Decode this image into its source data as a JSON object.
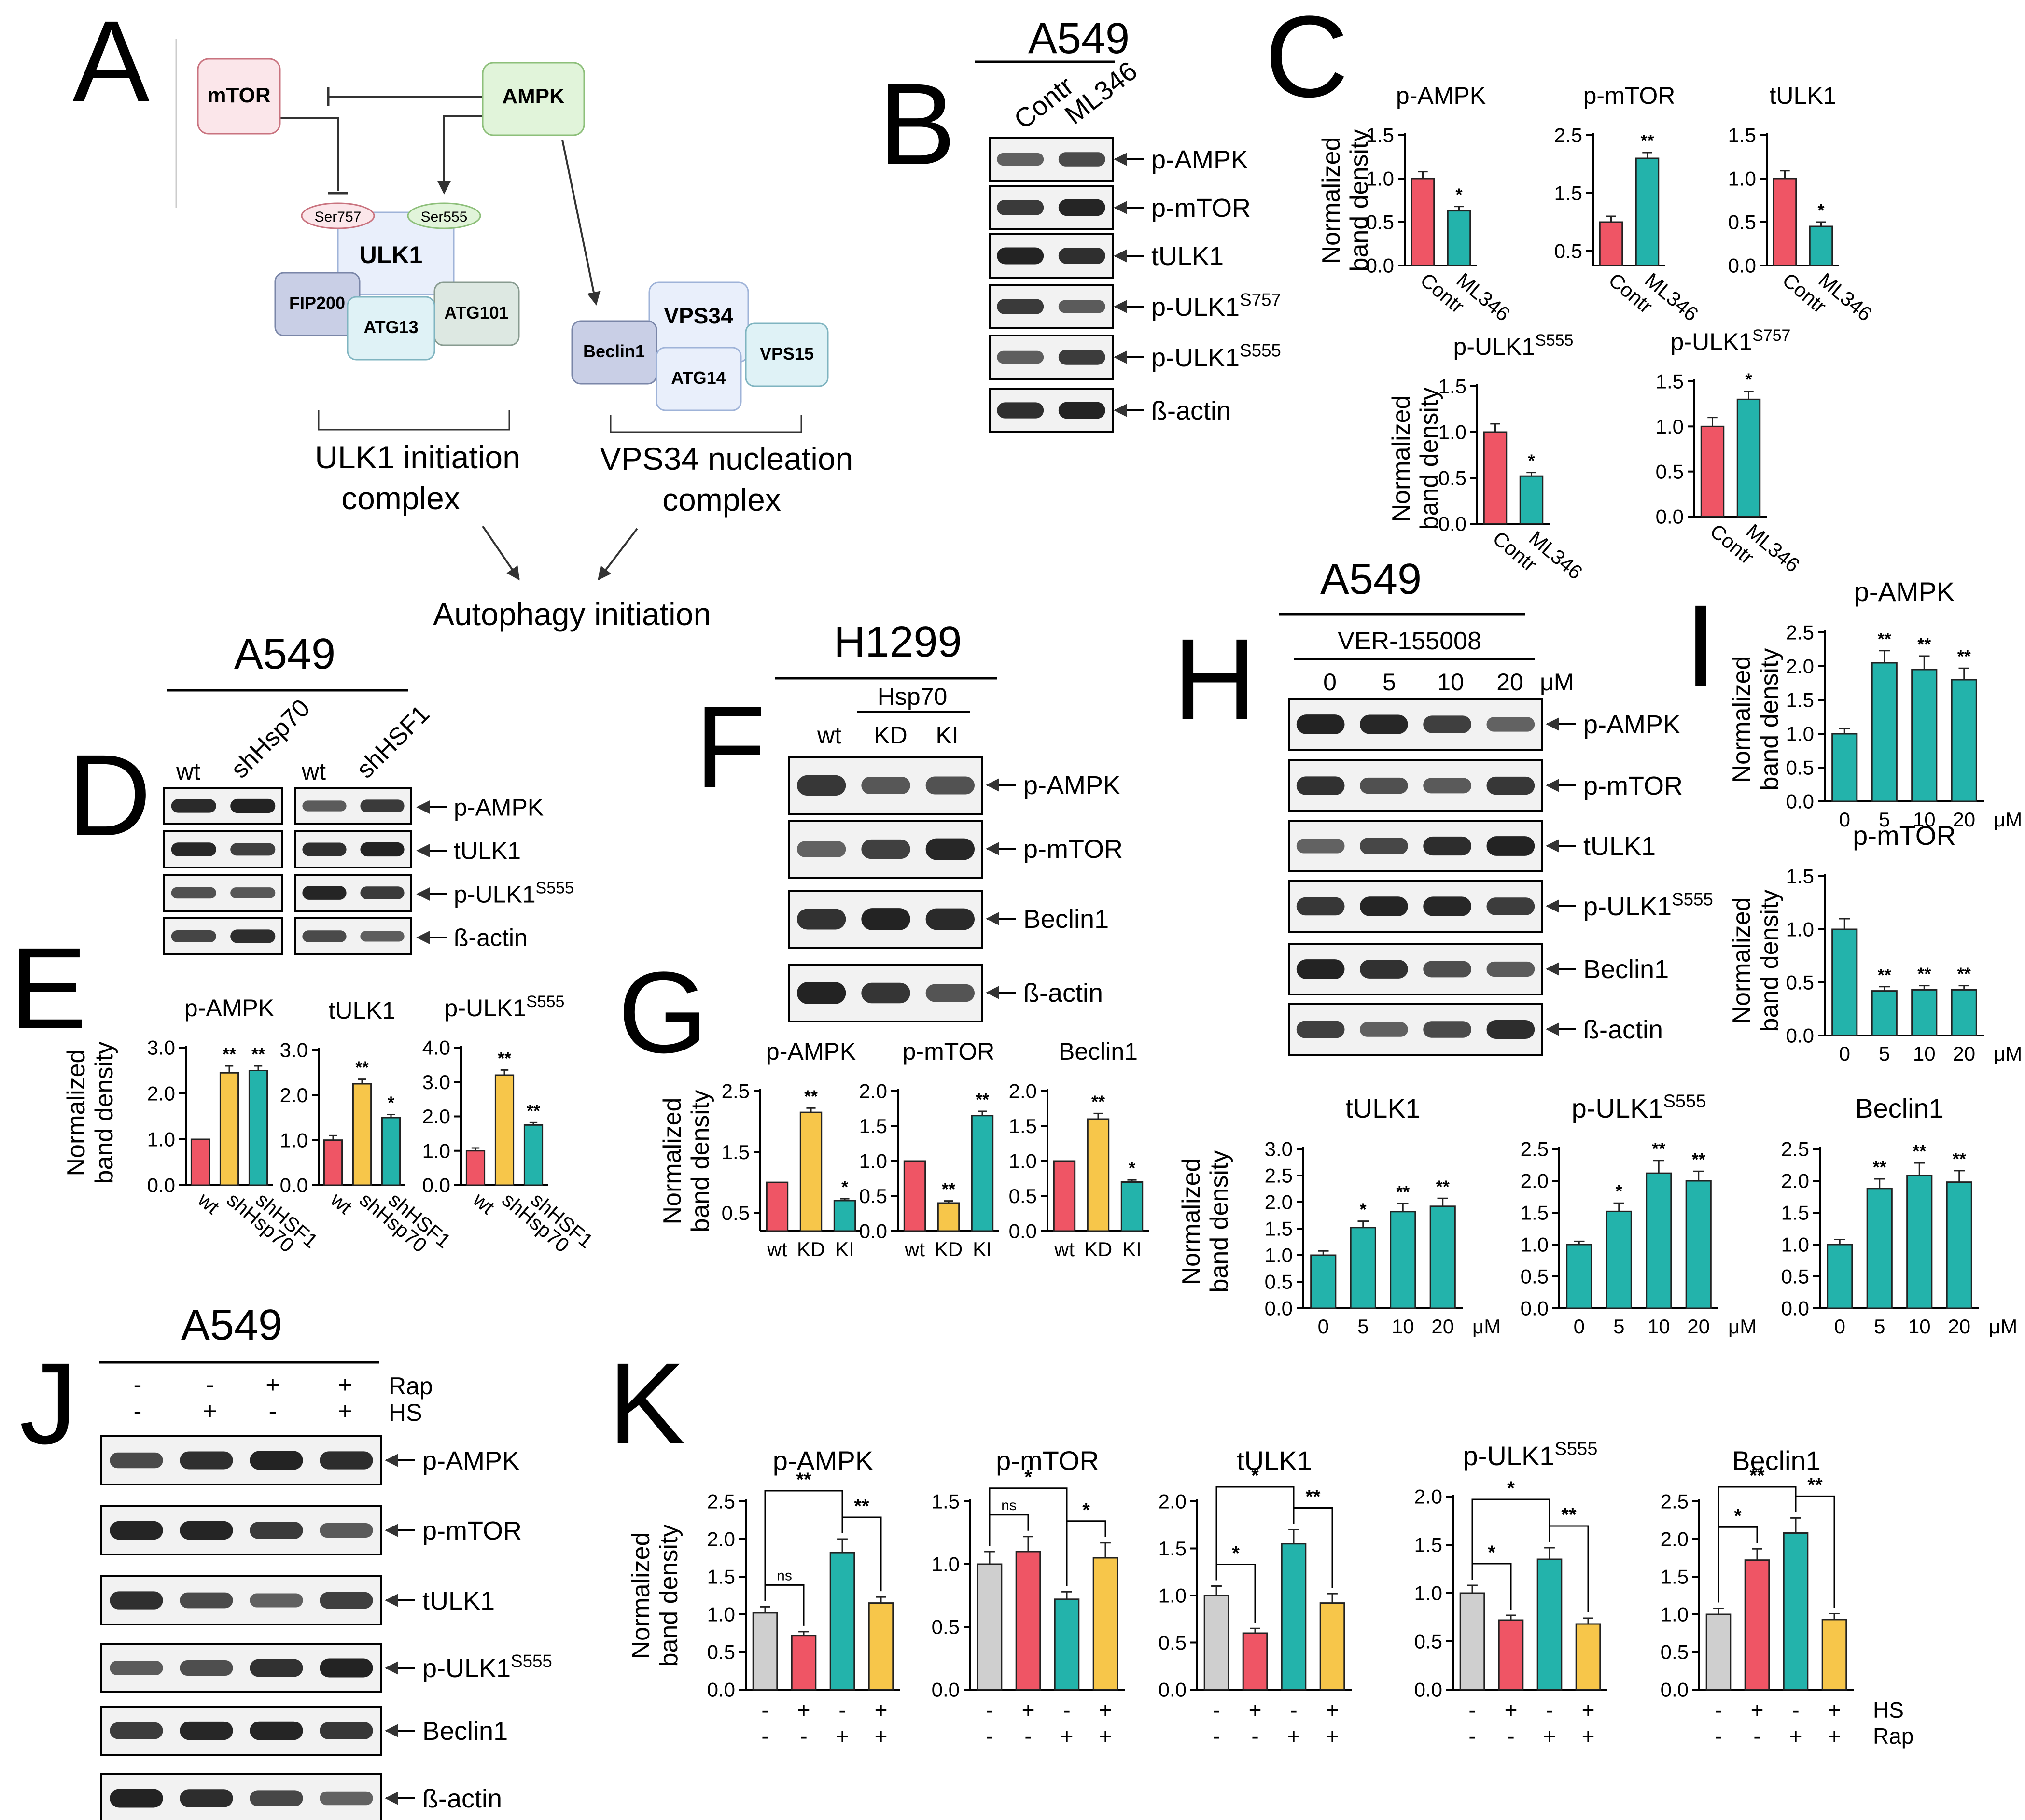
{
  "colors": {
    "grey": "#cfcfcf",
    "red": "#ef5565",
    "teal": "#23b3ab",
    "yellow": "#f7c64a",
    "mtor_fill": "#fbe6ea",
    "mtor_stroke": "#c9737f",
    "ampk_fill": "#e1f4da",
    "ampk_stroke": "#8dbf7a",
    "ulk_fill": "#e9effb",
    "ulk_stroke": "#9fb3d8",
    "fip_fill": "#c9cfe6",
    "atg13_fill": "#dff2f6",
    "atg101_fill": "#dde8e2",
    "blot_fill": "#f2f2f2"
  },
  "panel_letters": [
    "A",
    "B",
    "C",
    "D",
    "E",
    "F",
    "G",
    "H",
    "I",
    "J",
    "K"
  ],
  "diagram": {
    "nodes": {
      "mtor": "mTOR",
      "ampk": "AMPK",
      "ser757": "Ser757",
      "ser555": "Ser555",
      "ulk1": "ULK1",
      "fip200": "FIP200",
      "atg13": "ATG13",
      "atg101": "ATG101",
      "beclin1": "Beclin1",
      "vps34": "VPS34",
      "atg14": "ATG14",
      "vps15": "VPS15"
    },
    "ulk1_complex": [
      "ULK1 initiation",
      "complex"
    ],
    "vps34_complex": [
      "VPS34 nucleation",
      "complex"
    ],
    "outcome": "Autophagy initiation"
  },
  "shared_text": {
    "ylabel": [
      "Normalized",
      "band density"
    ],
    "um": "μM",
    "sig1": "*",
    "sig2": "**",
    "ns": "ns"
  },
  "blots": {
    "B": {
      "cell": "A549",
      "lanes": [
        "Contr",
        "ML346"
      ],
      "rows": [
        {
          "label": "p-AMPK"
        },
        {
          "label": "p-mTOR"
        },
        {
          "label": "tULK1"
        },
        {
          "label": "p-ULK1",
          "sup": "S757"
        },
        {
          "label": "p-ULK1",
          "sup": "S555"
        },
        {
          "label": "ß-actin"
        }
      ]
    },
    "D": {
      "cell": "A549",
      "lanes": [
        "wt",
        "shHsp70",
        "wt",
        "shHSF1"
      ],
      "rows": [
        {
          "label": "p-AMPK"
        },
        {
          "label": "tULK1"
        },
        {
          "label": "p-ULK1",
          "sup": "S555"
        },
        {
          "label": "ß-actin"
        }
      ]
    },
    "F": {
      "cell": "H1299",
      "group": "Hsp70",
      "lanes": [
        "wt",
        "KD",
        "KI"
      ],
      "rows": [
        {
          "label": "p-AMPK"
        },
        {
          "label": "p-mTOR"
        },
        {
          "label": "Beclin1"
        },
        {
          "label": "ß-actin"
        }
      ]
    },
    "H": {
      "cell": "A549",
      "treatment": "VER-155008",
      "lanes": [
        "0",
        "5",
        "10",
        "20"
      ],
      "rows": [
        {
          "label": "p-AMPK"
        },
        {
          "label": "p-mTOR"
        },
        {
          "label": "tULK1"
        },
        {
          "label": "p-ULK1",
          "sup": "S555"
        },
        {
          "label": "Beclin1"
        },
        {
          "label": "ß-actin"
        }
      ]
    },
    "J": {
      "cell": "A549",
      "rap": [
        "-",
        "-",
        "+",
        "+"
      ],
      "hs": [
        "-",
        "+",
        "-",
        "+"
      ],
      "rap_label": "Rap",
      "hs_label": "HS",
      "rows": [
        {
          "label": "p-AMPK"
        },
        {
          "label": "p-mTOR"
        },
        {
          "label": "tULK1"
        },
        {
          "label": "p-ULK1",
          "sup": "S555"
        },
        {
          "label": "Beclin1"
        },
        {
          "label": "ß-actin"
        }
      ]
    }
  },
  "chart_data": [
    {
      "id": "C-pAMPK",
      "type": "bar",
      "title": "p-AMPK",
      "categories": [
        "Contr",
        "ML346"
      ],
      "values": [
        1.0,
        0.63
      ],
      "errors": [
        0.08,
        0.05
      ],
      "colors": [
        "red",
        "teal"
      ],
      "ylim": [
        0,
        1.5
      ],
      "yticks": [
        "0.0",
        "0.5",
        "1.0",
        "1.5"
      ],
      "sig": [
        "",
        "*"
      ]
    },
    {
      "id": "C-pmTOR",
      "type": "bar",
      "title": "p-mTOR",
      "categories": [
        "Contr",
        "ML346"
      ],
      "values": [
        1.0,
        2.1
      ],
      "errors": [
        0.1,
        0.1
      ],
      "colors": [
        "red",
        "teal"
      ],
      "ylim": [
        0.25,
        2.5
      ],
      "yticks": [
        "0.5",
        "1.5",
        "2.5"
      ],
      "sig": [
        "",
        "**"
      ]
    },
    {
      "id": "C-tULK1",
      "type": "bar",
      "title": "tULK1",
      "categories": [
        "Contr",
        "ML346"
      ],
      "values": [
        1.0,
        0.45
      ],
      "errors": [
        0.09,
        0.05
      ],
      "colors": [
        "red",
        "teal"
      ],
      "ylim": [
        0,
        1.5
      ],
      "yticks": [
        "0.0",
        "0.5",
        "1.0",
        "1.5"
      ],
      "sig": [
        "",
        "*"
      ]
    },
    {
      "id": "C-pULK1S555",
      "type": "bar",
      "title": "p-ULK1",
      "title_sup": "S555",
      "categories": [
        "Contr",
        "ML346"
      ],
      "values": [
        1.0,
        0.52
      ],
      "errors": [
        0.09,
        0.04
      ],
      "colors": [
        "red",
        "teal"
      ],
      "ylim": [
        0,
        1.5
      ],
      "yticks": [
        "0.0",
        "0.5",
        "1.0",
        "1.5"
      ],
      "sig": [
        "",
        "*"
      ]
    },
    {
      "id": "C-pULK1S757",
      "type": "bar",
      "title": "p-ULK1",
      "title_sup": "S757",
      "categories": [
        "Contr",
        "ML346"
      ],
      "values": [
        1.0,
        1.3
      ],
      "errors": [
        0.1,
        0.09
      ],
      "colors": [
        "red",
        "teal"
      ],
      "ylim": [
        0,
        1.5
      ],
      "yticks": [
        "0.0",
        "0.5",
        "1.0",
        "1.5"
      ],
      "sig": [
        "",
        "*"
      ]
    },
    {
      "id": "E-pAMPK",
      "type": "bar",
      "title": "p-AMPK",
      "categories": [
        "wt",
        "shHsp70",
        "shHSF1"
      ],
      "values": [
        1.0,
        2.45,
        2.5
      ],
      "errors": [
        0.0,
        0.15,
        0.1
      ],
      "colors": [
        "red",
        "yellow",
        "teal"
      ],
      "ylim": [
        0,
        3.0
      ],
      "yticks": [
        "0.0",
        "1.0",
        "2.0",
        "3.0"
      ],
      "sig": [
        "",
        "**",
        "**"
      ]
    },
    {
      "id": "E-tULK1",
      "type": "bar",
      "title": "tULK1",
      "categories": [
        "wt",
        "shHsp70",
        "shHSF1"
      ],
      "values": [
        1.0,
        2.25,
        1.5
      ],
      "errors": [
        0.1,
        0.1,
        0.07
      ],
      "colors": [
        "red",
        "yellow",
        "teal"
      ],
      "ylim": [
        0,
        3.0
      ],
      "yticks": [
        "0.0",
        "1.0",
        "2.0",
        "3.0"
      ],
      "sig": [
        "",
        "**",
        "*"
      ]
    },
    {
      "id": "E-pULK1S555",
      "type": "bar",
      "title": "p-ULK1",
      "title_sup": "S555",
      "categories": [
        "wt",
        "shHsp70",
        "shHSF1"
      ],
      "values": [
        1.0,
        3.2,
        1.75
      ],
      "errors": [
        0.08,
        0.15,
        0.07
      ],
      "colors": [
        "red",
        "yellow",
        "teal"
      ],
      "ylim": [
        0,
        4.0
      ],
      "yticks": [
        "0.0",
        "1.0",
        "2.0",
        "3.0",
        "4.0"
      ],
      "sig": [
        "",
        "**",
        "**"
      ]
    },
    {
      "id": "G-pAMPK",
      "type": "bar",
      "title": "p-AMPK",
      "categories": [
        "wt",
        "KD",
        "KI"
      ],
      "values": [
        1.0,
        2.15,
        0.7
      ],
      "errors": [
        0.0,
        0.07,
        0.03
      ],
      "colors": [
        "red",
        "yellow",
        "teal"
      ],
      "ylim": [
        0.2,
        2.5
      ],
      "yticks": [
        "0.5",
        "1.5",
        "2.5"
      ],
      "sig": [
        "",
        "**",
        "*"
      ]
    },
    {
      "id": "G-pmTOR",
      "type": "bar",
      "title": "p-mTOR",
      "categories": [
        "wt",
        "KD",
        "KI"
      ],
      "values": [
        1.0,
        0.4,
        1.65
      ],
      "errors": [
        0.0,
        0.03,
        0.06
      ],
      "colors": [
        "red",
        "yellow",
        "teal"
      ],
      "ylim": [
        0,
        2.0
      ],
      "yticks": [
        "0.0",
        "0.5",
        "1.0",
        "1.5",
        "2.0"
      ],
      "sig": [
        "",
        "**",
        "**"
      ]
    },
    {
      "id": "G-Beclin1",
      "type": "bar",
      "title": "Beclin1",
      "categories": [
        "wt",
        "KD",
        "KI"
      ],
      "values": [
        1.0,
        1.6,
        0.7
      ],
      "errors": [
        0.0,
        0.08,
        0.03
      ],
      "colors": [
        "red",
        "yellow",
        "teal"
      ],
      "ylim": [
        0,
        2.0
      ],
      "yticks": [
        "0.0",
        "0.5",
        "1.0",
        "1.5",
        "2.0"
      ],
      "sig": [
        "",
        "**",
        "*"
      ]
    },
    {
      "id": "H-tULK1",
      "type": "bar",
      "title": "tULK1",
      "categories": [
        "0",
        "5",
        "10",
        "20"
      ],
      "values": [
        1.0,
        1.52,
        1.82,
        1.92
      ],
      "errors": [
        0.08,
        0.12,
        0.15,
        0.15
      ],
      "colors": [
        "teal",
        "teal",
        "teal",
        "teal"
      ],
      "ylim": [
        0,
        3.0
      ],
      "yticks": [
        "0.0",
        "0.5",
        "1.0",
        "1.5",
        "2.0",
        "2.5",
        "3.0"
      ],
      "sig": [
        "",
        "*",
        "**",
        "**"
      ],
      "unit": true
    },
    {
      "id": "H-pULK1S555",
      "type": "bar",
      "title": "p-ULK1",
      "title_sup": "S555",
      "categories": [
        "0",
        "5",
        "10",
        "20"
      ],
      "values": [
        1.0,
        1.52,
        2.12,
        2.0
      ],
      "errors": [
        0.05,
        0.13,
        0.2,
        0.15
      ],
      "colors": [
        "teal",
        "teal",
        "teal",
        "teal"
      ],
      "ylim": [
        0,
        2.5
      ],
      "yticks": [
        "0.0",
        "0.5",
        "1.0",
        "1.5",
        "2.0",
        "2.5"
      ],
      "sig": [
        "",
        "*",
        "**",
        "**"
      ],
      "unit": true
    },
    {
      "id": "H-Beclin1",
      "type": "bar",
      "title": "Beclin1",
      "categories": [
        "0",
        "5",
        "10",
        "20"
      ],
      "values": [
        1.0,
        1.88,
        2.08,
        1.98
      ],
      "errors": [
        0.08,
        0.15,
        0.2,
        0.18
      ],
      "colors": [
        "teal",
        "teal",
        "teal",
        "teal"
      ],
      "ylim": [
        0,
        2.5
      ],
      "yticks": [
        "0.0",
        "0.5",
        "1.0",
        "1.5",
        "2.0",
        "2.5"
      ],
      "sig": [
        "",
        "**",
        "**",
        "**"
      ],
      "unit": true
    },
    {
      "id": "I-pAMPK",
      "type": "bar",
      "title": "p-AMPK",
      "categories": [
        "0",
        "5",
        "10",
        "20"
      ],
      "values": [
        1.0,
        2.05,
        1.95,
        1.8
      ],
      "errors": [
        0.08,
        0.18,
        0.2,
        0.17
      ],
      "colors": [
        "teal",
        "teal",
        "teal",
        "teal"
      ],
      "ylim": [
        0,
        2.5
      ],
      "yticks": [
        "0.0",
        "0.5",
        "1.0",
        "1.5",
        "2.0",
        "2.5"
      ],
      "sig": [
        "",
        "**",
        "**",
        "**"
      ],
      "unit": true
    },
    {
      "id": "I-pmTOR",
      "type": "bar",
      "title": "p-mTOR",
      "categories": [
        "0",
        "5",
        "10",
        "20"
      ],
      "values": [
        1.0,
        0.42,
        0.43,
        0.43
      ],
      "errors": [
        0.1,
        0.04,
        0.04,
        0.04
      ],
      "colors": [
        "teal",
        "teal",
        "teal",
        "teal"
      ],
      "ylim": [
        0,
        1.5
      ],
      "yticks": [
        "0.0",
        "0.5",
        "1.0",
        "1.5"
      ],
      "sig": [
        "",
        "**",
        "**",
        "**"
      ],
      "unit": true
    },
    {
      "id": "K-pAMPK",
      "type": "bar",
      "title": "p-AMPK",
      "hs": [
        "-",
        "+",
        "-",
        "+"
      ],
      "rap": [
        "-",
        "-",
        "+",
        "+"
      ],
      "values": [
        1.02,
        0.72,
        1.82,
        1.15
      ],
      "errors": [
        0.08,
        0.05,
        0.18,
        0.08
      ],
      "colors": [
        "grey",
        "red",
        "teal",
        "yellow"
      ],
      "ylim": [
        0,
        2.5
      ],
      "yticks": [
        "0.0",
        "0.5",
        "1.0",
        "1.5",
        "2.0",
        "2.5"
      ],
      "brackets": [
        {
          "a": 0,
          "b": 1,
          "label": "ns",
          "level": 0
        },
        {
          "a": 0,
          "b": 2,
          "label": "**",
          "level": 1
        },
        {
          "a": 2,
          "b": 3,
          "label": "**",
          "level": 0
        }
      ]
    },
    {
      "id": "K-pmTOR",
      "type": "bar",
      "title": "p-mTOR",
      "hs": [
        "-",
        "+",
        "-",
        "+"
      ],
      "rap": [
        "-",
        "-",
        "+",
        "+"
      ],
      "values": [
        1.0,
        1.1,
        0.72,
        1.05
      ],
      "errors": [
        0.1,
        0.12,
        0.06,
        0.12
      ],
      "colors": [
        "grey",
        "red",
        "teal",
        "yellow"
      ],
      "ylim": [
        0,
        1.5
      ],
      "yticks": [
        "0.0",
        "0.5",
        "1.0",
        "1.5"
      ],
      "brackets": [
        {
          "a": 0,
          "b": 1,
          "label": "ns",
          "level": 0
        },
        {
          "a": 0,
          "b": 2,
          "label": "*",
          "level": 1
        },
        {
          "a": 2,
          "b": 3,
          "label": "*",
          "level": 0
        }
      ]
    },
    {
      "id": "K-tULK1",
      "type": "bar",
      "title": "tULK1",
      "hs": [
        "-",
        "+",
        "-",
        "+"
      ],
      "rap": [
        "-",
        "-",
        "+",
        "+"
      ],
      "values": [
        1.0,
        0.6,
        1.55,
        0.92
      ],
      "errors": [
        0.1,
        0.05,
        0.15,
        0.1
      ],
      "colors": [
        "grey",
        "red",
        "teal",
        "yellow"
      ],
      "ylim": [
        0,
        2.0
      ],
      "yticks": [
        "0.0",
        "0.5",
        "1.0",
        "1.5",
        "2.0"
      ],
      "brackets": [
        {
          "a": 0,
          "b": 1,
          "label": "*",
          "level": 0
        },
        {
          "a": 0,
          "b": 2,
          "label": "*",
          "level": 1
        },
        {
          "a": 2,
          "b": 3,
          "label": "**",
          "level": 0
        }
      ]
    },
    {
      "id": "K-pULK1S555",
      "type": "bar",
      "title": "p-ULK1",
      "title_sup": "S555",
      "hs": [
        "-",
        "+",
        "-",
        "+"
      ],
      "rap": [
        "-",
        "-",
        "+",
        "+"
      ],
      "values": [
        1.0,
        0.72,
        1.35,
        0.68
      ],
      "errors": [
        0.08,
        0.05,
        0.12,
        0.06
      ],
      "colors": [
        "grey",
        "red",
        "teal",
        "yellow"
      ],
      "ylim": [
        0,
        2.0
      ],
      "yticks": [
        "0.0",
        "0.5",
        "1.0",
        "1.5",
        "2.0"
      ],
      "brackets": [
        {
          "a": 0,
          "b": 1,
          "label": "*",
          "level": 0
        },
        {
          "a": 0,
          "b": 2,
          "label": "*",
          "level": 1
        },
        {
          "a": 2,
          "b": 3,
          "label": "**",
          "level": 0
        }
      ]
    },
    {
      "id": "K-Beclin1",
      "type": "bar",
      "title": "Beclin1",
      "hs": [
        "-",
        "+",
        "-",
        "+"
      ],
      "rap": [
        "-",
        "-",
        "+",
        "+"
      ],
      "values": [
        1.0,
        1.72,
        2.08,
        0.93
      ],
      "errors": [
        0.08,
        0.15,
        0.2,
        0.08
      ],
      "colors": [
        "grey",
        "red",
        "teal",
        "yellow"
      ],
      "ylim": [
        0,
        2.5
      ],
      "yticks": [
        "0.0",
        "0.5",
        "1.0",
        "1.5",
        "2.0",
        "2.5"
      ],
      "brackets": [
        {
          "a": 0,
          "b": 1,
          "label": "*",
          "level": 0
        },
        {
          "a": 0,
          "b": 2,
          "label": "**",
          "level": 1
        },
        {
          "a": 2,
          "b": 3,
          "label": "**",
          "level": 0
        }
      ],
      "row_labels": [
        "HS",
        "Rap"
      ]
    }
  ]
}
